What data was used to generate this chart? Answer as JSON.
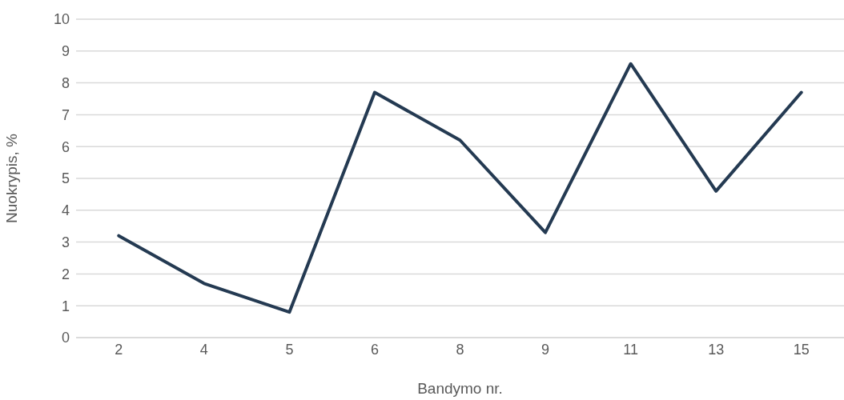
{
  "chart_data": {
    "type": "line",
    "xlabel": "Bandymo nr.",
    "ylabel": "Nuokrypis, %",
    "categories": [
      "2",
      "4",
      "5",
      "6",
      "8",
      "9",
      "11",
      "13",
      "15"
    ],
    "series": [
      {
        "color": "#243a52",
        "values": [
          3.2,
          1.7,
          0.8,
          7.7,
          6.2,
          3.3,
          8.6,
          4.6,
          7.7
        ]
      }
    ],
    "ylim": [
      0,
      10
    ],
    "yticks": [
      0,
      1,
      2,
      3,
      4,
      5,
      6,
      7,
      8,
      9,
      10
    ],
    "grid": "y",
    "legend": false,
    "marker": "none",
    "line_style": "solid"
  }
}
